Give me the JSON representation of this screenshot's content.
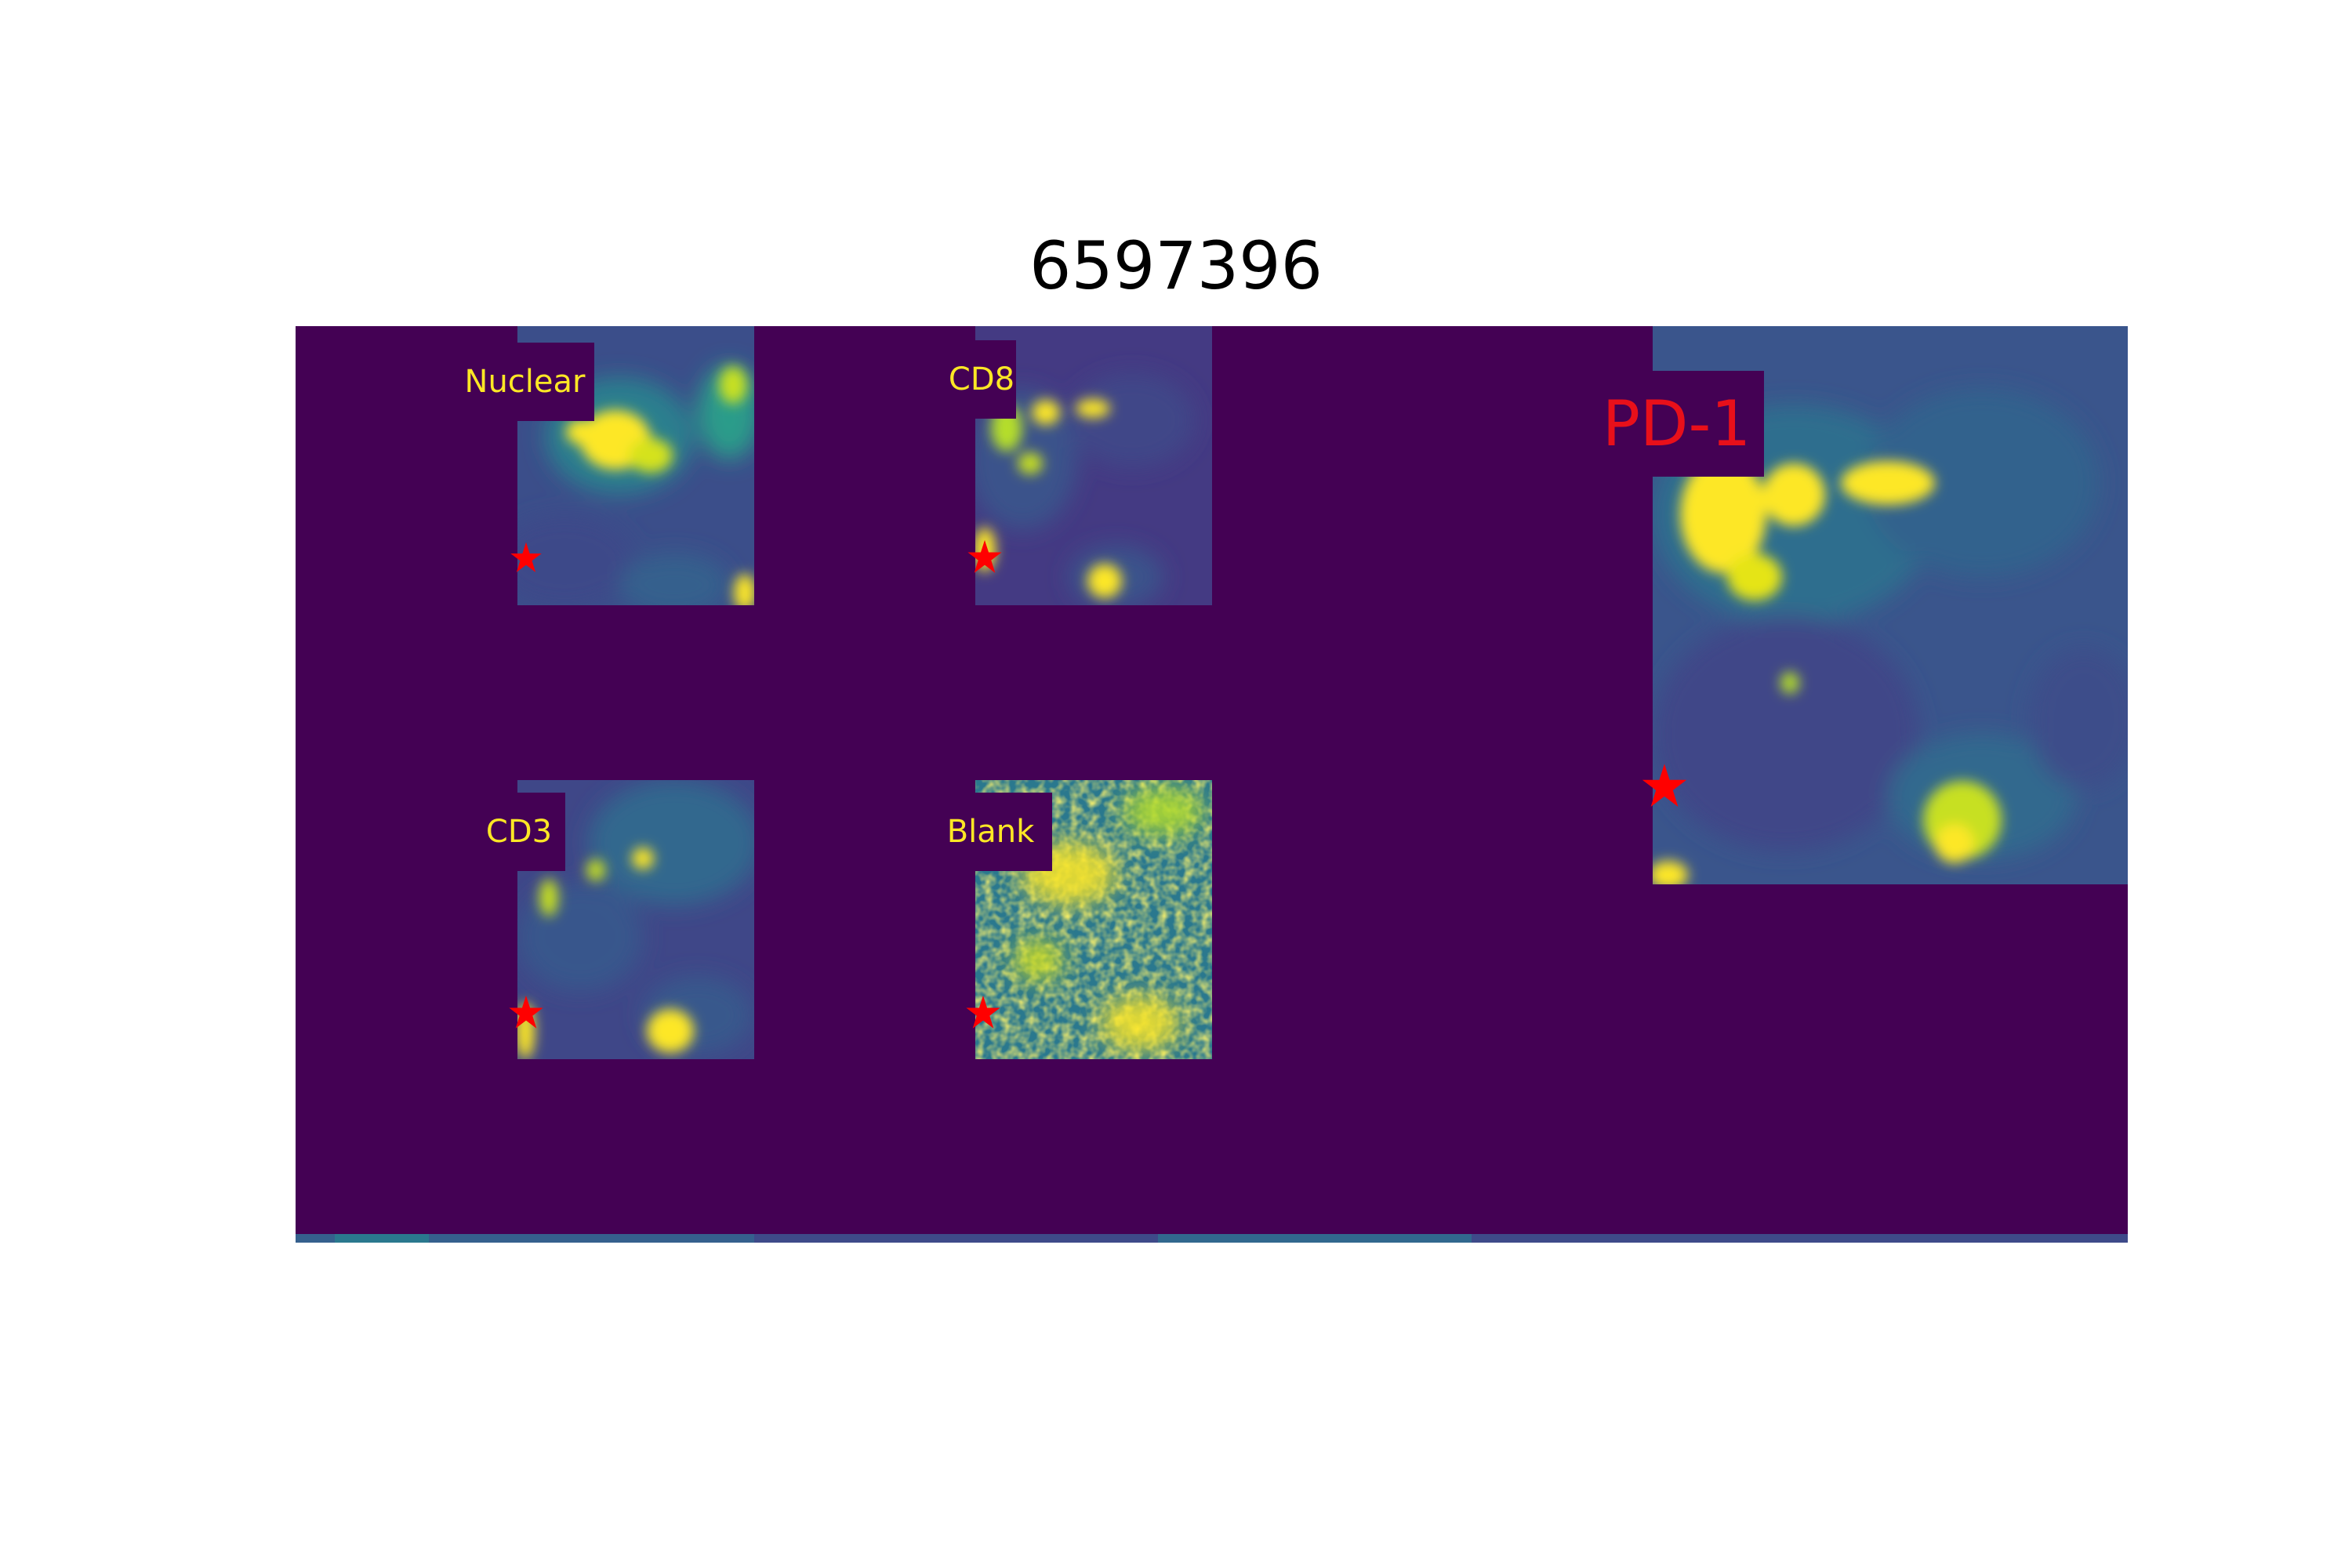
{
  "figure": {
    "title": "6597396"
  },
  "panels": [
    {
      "id": "nuclear",
      "label": "Nuclear"
    },
    {
      "id": "cd8",
      "label": "CD8"
    },
    {
      "id": "cd3",
      "label": "CD3"
    },
    {
      "id": "blank",
      "label": "Blank"
    },
    {
      "id": "pd1",
      "label": "PD-1"
    }
  ],
  "colors": {
    "background": "#440154",
    "label_text": "#fde725",
    "marker": "#ff0000",
    "pd1_label": "#e8101a"
  }
}
